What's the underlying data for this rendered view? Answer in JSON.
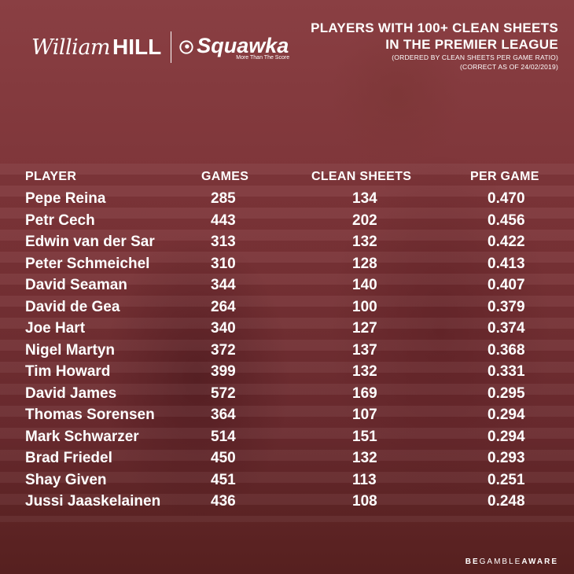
{
  "brand": {
    "sponsor_script": "William",
    "sponsor_bold": "HILL",
    "partner_name": "Squawka",
    "partner_tagline": "More Than The Score",
    "squawka_icon": "swirl-icon"
  },
  "title": {
    "line1": "PLAYERS WITH 100+ CLEAN SHEETS",
    "line2": "IN THE PREMIER LEAGUE",
    "line3": "(ORDERED BY CLEAN SHEETS PER GAME RATIO)",
    "line4": "(CORRECT AS OF 24/02/2019)"
  },
  "footer": {
    "be": "BE",
    "gamble": "GAMBLE",
    "aware": "AWARE"
  },
  "colors": {
    "background": "#7b3337",
    "text": "#ffffff"
  },
  "chart_data": {
    "type": "table",
    "columns": [
      "PLAYER",
      "GAMES",
      "CLEAN SHEETS",
      "PER GAME"
    ],
    "rows": [
      {
        "player": "Pepe Reina",
        "games": "285",
        "clean_sheets": "134",
        "per_game": "0.470"
      },
      {
        "player": "Petr Cech",
        "games": "443",
        "clean_sheets": "202",
        "per_game": "0.456"
      },
      {
        "player": "Edwin van der Sar",
        "games": "313",
        "clean_sheets": "132",
        "per_game": "0.422"
      },
      {
        "player": "Peter Schmeichel",
        "games": "310",
        "clean_sheets": "128",
        "per_game": "0.413"
      },
      {
        "player": "David Seaman",
        "games": "344",
        "clean_sheets": "140",
        "per_game": "0.407"
      },
      {
        "player": "David de Gea",
        "games": "264",
        "clean_sheets": "100",
        "per_game": "0.379"
      },
      {
        "player": "Joe Hart",
        "games": "340",
        "clean_sheets": "127",
        "per_game": "0.374"
      },
      {
        "player": "Nigel Martyn",
        "games": "372",
        "clean_sheets": "137",
        "per_game": "0.368"
      },
      {
        "player": "Tim Howard",
        "games": "399",
        "clean_sheets": "132",
        "per_game": "0.331"
      },
      {
        "player": "David James",
        "games": "572",
        "clean_sheets": "169",
        "per_game": "0.295"
      },
      {
        "player": "Thomas Sorensen",
        "games": "364",
        "clean_sheets": "107",
        "per_game": "0.294"
      },
      {
        "player": "Mark Schwarzer",
        "games": "514",
        "clean_sheets": "151",
        "per_game": "0.294"
      },
      {
        "player": "Brad Friedel",
        "games": "450",
        "clean_sheets": "132",
        "per_game": "0.293"
      },
      {
        "player": "Shay Given",
        "games": "451",
        "clean_sheets": "113",
        "per_game": "0.251"
      },
      {
        "player": "Jussi Jaaskelainen",
        "games": "436",
        "clean_sheets": "108",
        "per_game": "0.248"
      }
    ]
  }
}
